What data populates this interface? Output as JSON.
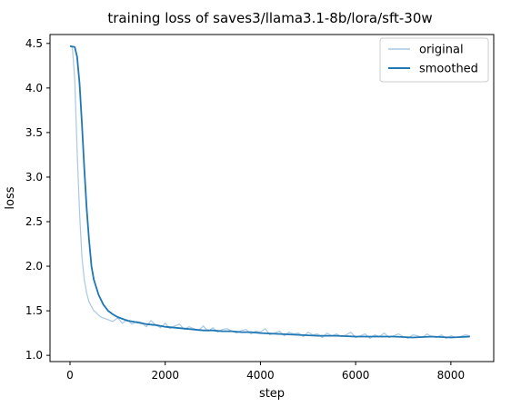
{
  "chart_data": {
    "type": "line",
    "title": "training loss of saves3/llama3.1-8b/lora/sft-30w",
    "xlabel": "step",
    "ylabel": "loss",
    "xlim": [
      -420,
      8900
    ],
    "ylim": [
      0.93,
      4.6
    ],
    "xticks": [
      0,
      2000,
      4000,
      6000,
      8000
    ],
    "xtick_labels": [
      "0",
      "2000",
      "4000",
      "6000",
      "8000"
    ],
    "yticks": [
      1.0,
      1.5,
      2.0,
      2.5,
      3.0,
      3.5,
      4.0,
      4.5
    ],
    "ytick_labels": [
      "1.0",
      "1.5",
      "2.0",
      "2.5",
      "3.0",
      "3.5",
      "4.0",
      "4.5"
    ],
    "grid": false,
    "legend_position": "top-right",
    "series": [
      {
        "name": "original",
        "color": "#a9c9e4",
        "x": [
          0,
          50,
          100,
          150,
          200,
          250,
          300,
          350,
          400,
          450,
          500,
          550,
          600,
          650,
          700,
          750,
          800,
          900,
          1000,
          1100,
          1200,
          1300,
          1400,
          1500,
          1600,
          1700,
          1800,
          1900,
          2000,
          2100,
          2200,
          2300,
          2400,
          2500,
          2600,
          2700,
          2800,
          2900,
          3000,
          3100,
          3200,
          3300,
          3400,
          3500,
          3600,
          3700,
          3800,
          3900,
          4000,
          4100,
          4200,
          4300,
          4400,
          4500,
          4600,
          4700,
          4800,
          4900,
          5000,
          5100,
          5200,
          5300,
          5400,
          5500,
          5600,
          5700,
          5800,
          5900,
          6000,
          6100,
          6200,
          6300,
          6400,
          6500,
          6600,
          6700,
          6800,
          6900,
          7000,
          7100,
          7200,
          7300,
          7400,
          7500,
          7600,
          7700,
          7800,
          7900,
          8000,
          8100,
          8200,
          8300,
          8400
        ],
        "values": [
          4.47,
          4.45,
          4.1,
          3.3,
          2.6,
          2.1,
          1.85,
          1.7,
          1.6,
          1.55,
          1.5,
          1.48,
          1.45,
          1.43,
          1.42,
          1.41,
          1.4,
          1.38,
          1.42,
          1.36,
          1.4,
          1.35,
          1.38,
          1.37,
          1.32,
          1.39,
          1.34,
          1.31,
          1.36,
          1.3,
          1.33,
          1.35,
          1.29,
          1.32,
          1.3,
          1.28,
          1.33,
          1.27,
          1.31,
          1.26,
          1.29,
          1.3,
          1.27,
          1.25,
          1.28,
          1.29,
          1.24,
          1.27,
          1.26,
          1.3,
          1.23,
          1.25,
          1.27,
          1.22,
          1.26,
          1.24,
          1.25,
          1.21,
          1.26,
          1.23,
          1.24,
          1.2,
          1.25,
          1.22,
          1.24,
          1.21,
          1.23,
          1.26,
          1.2,
          1.22,
          1.24,
          1.19,
          1.23,
          1.21,
          1.25,
          1.2,
          1.22,
          1.24,
          1.21,
          1.19,
          1.23,
          1.22,
          1.2,
          1.24,
          1.21,
          1.2,
          1.23,
          1.19,
          1.22,
          1.2,
          1.21,
          1.23,
          1.22
        ]
      },
      {
        "name": "smoothed",
        "color": "#1f77b4",
        "x": [
          0,
          100,
          150,
          200,
          250,
          300,
          350,
          400,
          450,
          500,
          600,
          700,
          800,
          900,
          1000,
          1200,
          1400,
          1600,
          1800,
          2000,
          2200,
          2400,
          2600,
          2800,
          3000,
          3200,
          3400,
          3600,
          3800,
          4000,
          4400,
          4800,
          5200,
          5600,
          6000,
          6400,
          6800,
          7200,
          7600,
          8000,
          8400
        ],
        "values": [
          4.47,
          4.46,
          4.35,
          4.05,
          3.6,
          3.1,
          2.65,
          2.3,
          2.0,
          1.85,
          1.68,
          1.57,
          1.5,
          1.46,
          1.43,
          1.39,
          1.37,
          1.35,
          1.34,
          1.32,
          1.31,
          1.3,
          1.29,
          1.28,
          1.28,
          1.27,
          1.27,
          1.26,
          1.26,
          1.25,
          1.24,
          1.23,
          1.22,
          1.22,
          1.21,
          1.21,
          1.21,
          1.2,
          1.21,
          1.2,
          1.21
        ]
      }
    ]
  }
}
